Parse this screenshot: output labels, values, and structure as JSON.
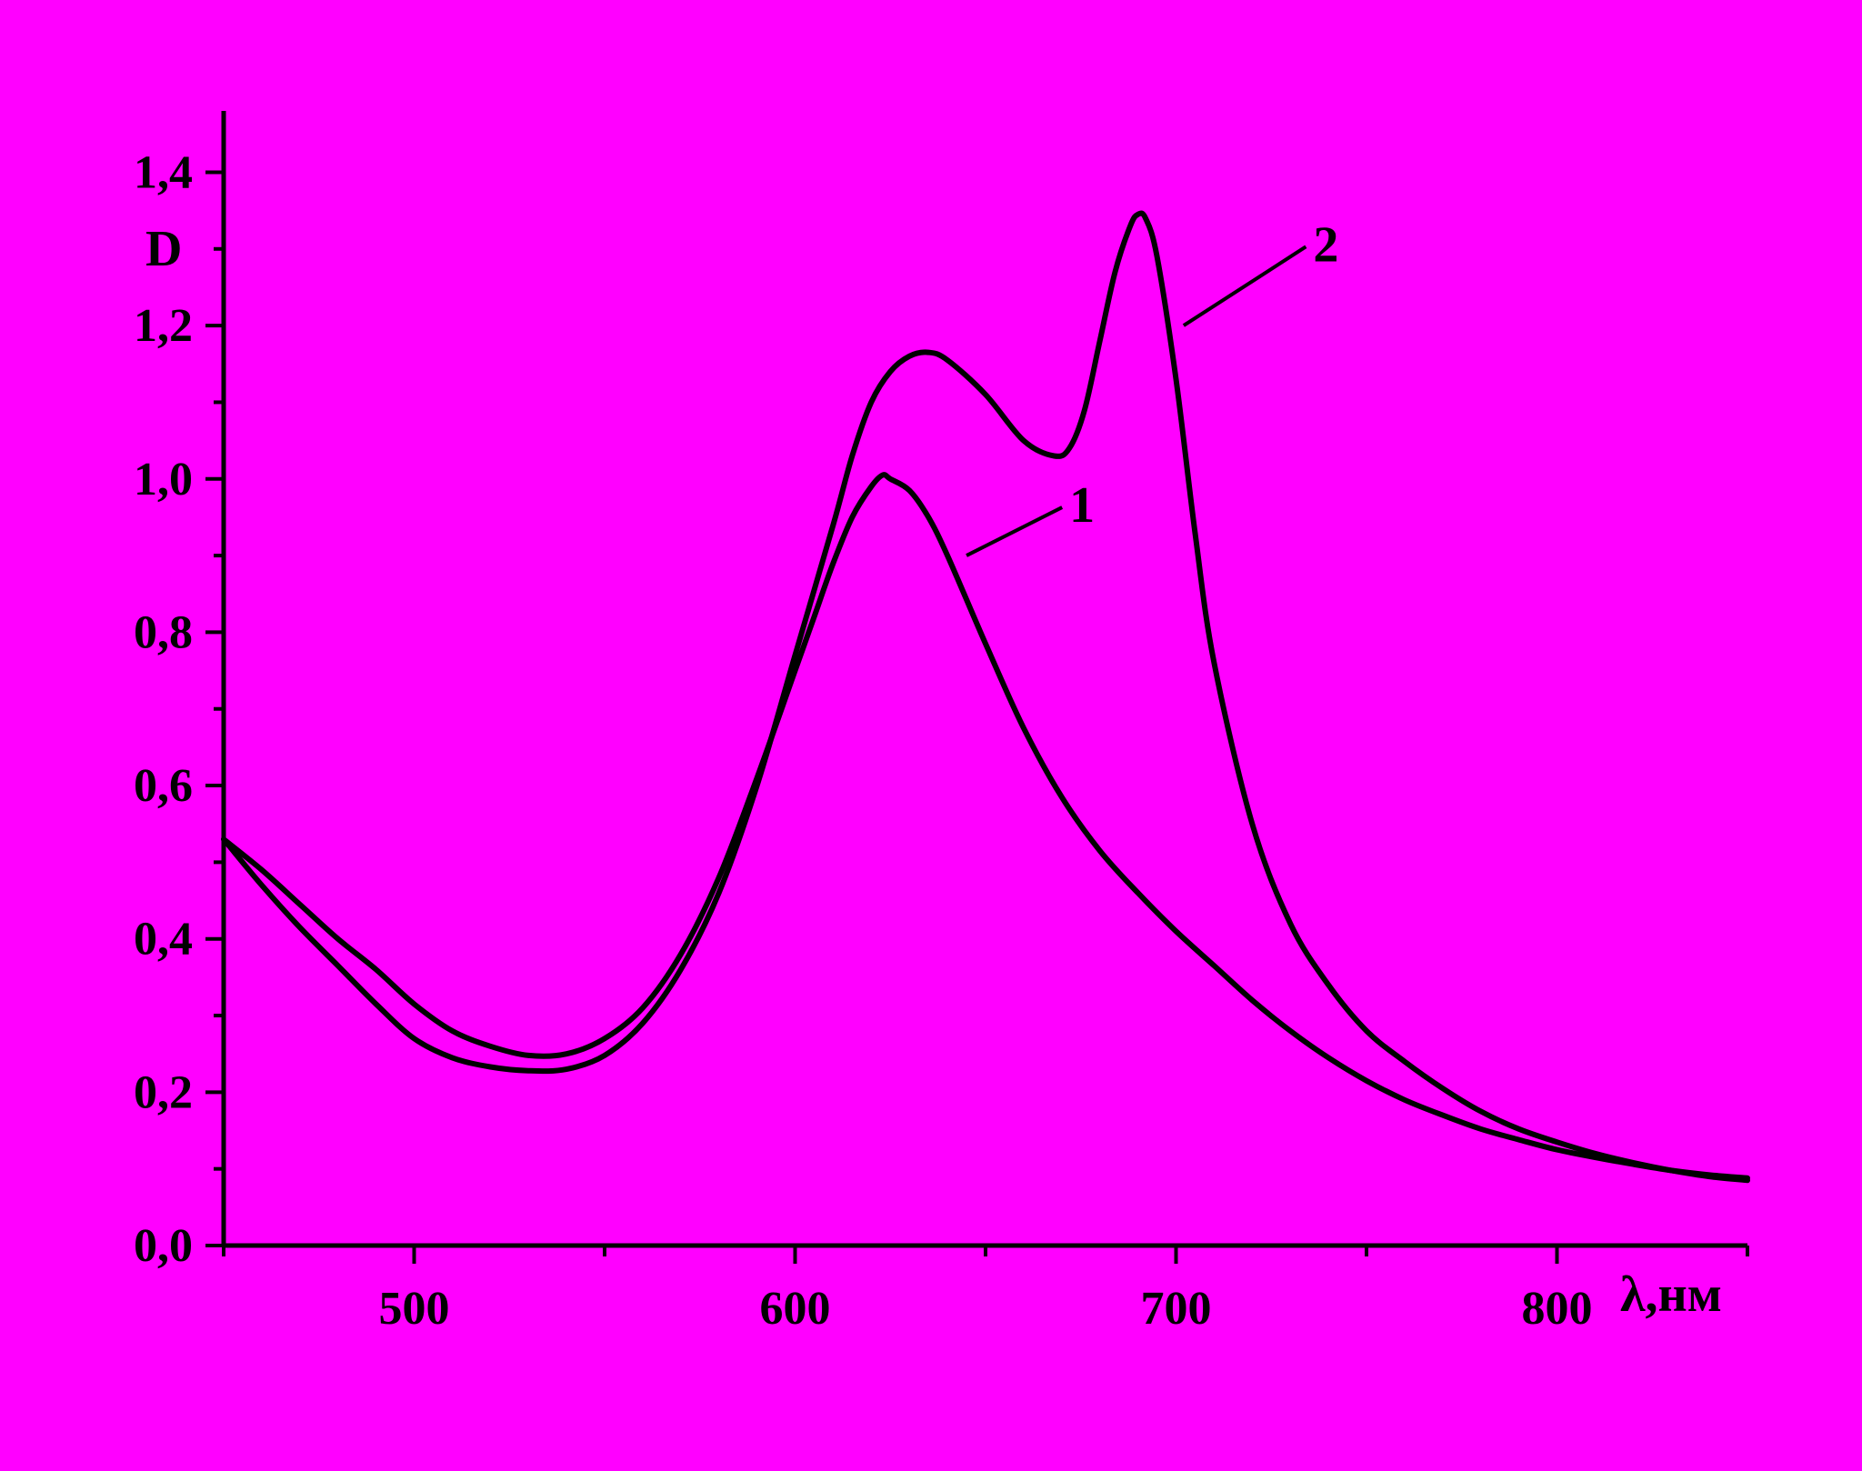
{
  "chart_data": {
    "type": "line",
    "background_color": "#ff00ff",
    "line_color": "#000000",
    "grid": false,
    "legend": "none",
    "xlabel": "λ,нм",
    "ylabel": "D",
    "xlim": [
      450,
      850
    ],
    "ylim": [
      0.0,
      1.48
    ],
    "x_ticks": [
      500,
      600,
      700,
      800
    ],
    "x_tick_labels": [
      "500",
      "600",
      "700",
      "800"
    ],
    "y_ticks": [
      0.0,
      0.2,
      0.4,
      0.6,
      0.8,
      1.0,
      1.2,
      1.4
    ],
    "y_tick_labels": [
      "0,0",
      "0,2",
      "0,4",
      "0,6",
      "0,8",
      "1,0",
      "1,2",
      "1,4"
    ],
    "series": [
      {
        "curve_label": "1",
        "label_anchor": [
          645,
          0.9
        ],
        "label_text_pos": [
          672,
          0.97
        ],
        "x": [
          450,
          460,
          470,
          480,
          490,
          500,
          510,
          520,
          530,
          540,
          550,
          560,
          570,
          580,
          590,
          600,
          605,
          610,
          615,
          620,
          623,
          625,
          630,
          635,
          640,
          650,
          660,
          670,
          680,
          690,
          700,
          710,
          720,
          730,
          740,
          750,
          760,
          770,
          780,
          790,
          800,
          810,
          820,
          830,
          840,
          850
        ],
        "y": [
          0.53,
          0.49,
          0.445,
          0.4,
          0.36,
          0.315,
          0.28,
          0.26,
          0.248,
          0.25,
          0.27,
          0.31,
          0.38,
          0.48,
          0.61,
          0.75,
          0.82,
          0.89,
          0.95,
          0.99,
          1.005,
          1.0,
          0.985,
          0.95,
          0.9,
          0.785,
          0.675,
          0.585,
          0.515,
          0.46,
          0.41,
          0.365,
          0.32,
          0.28,
          0.245,
          0.215,
          0.19,
          0.17,
          0.152,
          0.138,
          0.125,
          0.115,
          0.106,
          0.098,
          0.092,
          0.088
        ]
      },
      {
        "curve_label": "2",
        "label_anchor": [
          702,
          1.2
        ],
        "label_text_pos": [
          736,
          1.31
        ],
        "x": [
          450,
          460,
          470,
          480,
          490,
          500,
          510,
          520,
          530,
          540,
          550,
          560,
          570,
          580,
          590,
          600,
          610,
          615,
          620,
          625,
          630,
          635,
          640,
          650,
          660,
          668,
          672,
          676,
          680,
          684,
          688,
          690,
          692,
          695,
          700,
          705,
          710,
          720,
          730,
          740,
          750,
          760,
          770,
          780,
          790,
          800,
          810,
          820,
          830,
          840,
          850
        ],
        "y": [
          0.53,
          0.47,
          0.415,
          0.365,
          0.315,
          0.27,
          0.245,
          0.233,
          0.228,
          0.23,
          0.248,
          0.29,
          0.36,
          0.46,
          0.6,
          0.77,
          0.94,
          1.03,
          1.1,
          1.14,
          1.16,
          1.165,
          1.155,
          1.11,
          1.05,
          1.03,
          1.04,
          1.09,
          1.18,
          1.27,
          1.33,
          1.345,
          1.34,
          1.29,
          1.13,
          0.93,
          0.76,
          0.55,
          0.42,
          0.34,
          0.28,
          0.24,
          0.205,
          0.175,
          0.152,
          0.135,
          0.12,
          0.108,
          0.098,
          0.09,
          0.085
        ]
      }
    ]
  }
}
